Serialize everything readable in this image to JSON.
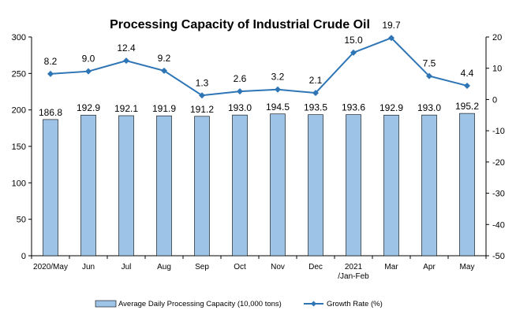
{
  "chart_data": {
    "type": "bar+line",
    "title": "Processing Capacity of Industrial Crude Oil",
    "categories": [
      [
        "2020/May"
      ],
      [
        "Jun"
      ],
      [
        "Jul"
      ],
      [
        "Aug"
      ],
      [
        "Sep"
      ],
      [
        "Oct"
      ],
      [
        "Nov"
      ],
      [
        "Dec"
      ],
      [
        "2021",
        "/Jan-Feb"
      ],
      [
        "Mar"
      ],
      [
        "Apr"
      ],
      [
        "May"
      ]
    ],
    "series": [
      {
        "name": "Average Daily Processing Capacity (10,000 tons)",
        "type": "bar",
        "axis": "left",
        "color": "#9DC3E6",
        "values": [
          186.8,
          192.9,
          192.1,
          191.9,
          191.2,
          193.0,
          194.5,
          193.5,
          193.6,
          192.9,
          193.0,
          195.2
        ]
      },
      {
        "name": "Growth Rate (%)",
        "type": "line",
        "axis": "right",
        "color": "#2E75B6",
        "values": [
          8.2,
          9.0,
          12.4,
          9.2,
          1.3,
          2.6,
          3.2,
          2.1,
          15.0,
          19.7,
          7.5,
          4.4
        ]
      }
    ],
    "bar_labels": [
      "186.8",
      "192.9",
      "192.1",
      "191.9",
      "191.2",
      "193.0",
      "194.5",
      "193.5",
      "193.6",
      "192.9",
      "193.0",
      "195.2"
    ],
    "line_labels": [
      "8.2",
      "9.0",
      "12.4",
      "9.2",
      "1.3",
      "2.6",
      "3.2",
      "2.1",
      "15.0",
      "19.7",
      "7.5",
      "4.4"
    ],
    "left_axis": {
      "min": 0,
      "max": 300,
      "step": 50,
      "ticks": [
        "0",
        "50",
        "100",
        "150",
        "200",
        "250",
        "300"
      ]
    },
    "right_axis": {
      "min": -50,
      "max": 20,
      "step": 10,
      "ticks": [
        "-50",
        "-40",
        "-30",
        "-20",
        "-10",
        "0",
        "10",
        "20"
      ]
    },
    "grid": false,
    "legend_position": "bottom"
  }
}
